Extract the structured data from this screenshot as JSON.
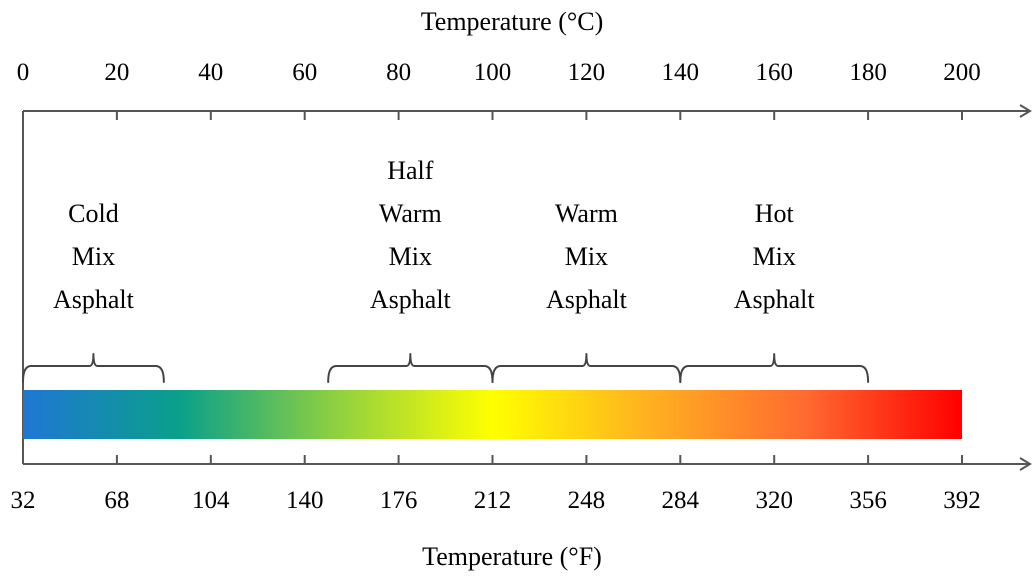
{
  "diagram": {
    "top_axis": {
      "title": "Temperature (°C)",
      "ticks": [
        "0",
        "20",
        "40",
        "60",
        "80",
        "100",
        "120",
        "140",
        "160",
        "180",
        "200"
      ],
      "values": [
        0,
        20,
        40,
        60,
        80,
        100,
        120,
        140,
        160,
        180,
        200
      ]
    },
    "bottom_axis": {
      "title": "Temperature (°F)",
      "ticks": [
        "32",
        "68",
        "104",
        "140",
        "176",
        "212",
        "248",
        "284",
        "320",
        "356",
        "392"
      ]
    },
    "gradient_bar": {
      "from_celsius": 0,
      "to_celsius": 200,
      "colors": [
        "#1f77d4",
        "#0aa08a",
        "#8fd040",
        "#ffff00",
        "#ffb020",
        "#ff6a30",
        "#ff0000"
      ]
    },
    "ranges": [
      {
        "lines": [
          "Cold",
          "Mix",
          "Asphalt"
        ],
        "from_celsius": 0,
        "to_celsius": 30
      },
      {
        "lines": [
          "Half",
          "Warm",
          "Mix",
          "Asphalt"
        ],
        "from_celsius": 65,
        "to_celsius": 100
      },
      {
        "lines": [
          "Warm",
          "Mix",
          "Asphalt"
        ],
        "from_celsius": 100,
        "to_celsius": 140
      },
      {
        "lines": [
          "Hot",
          "Mix",
          "Asphalt"
        ],
        "from_celsius": 140,
        "to_celsius": 180
      }
    ]
  }
}
